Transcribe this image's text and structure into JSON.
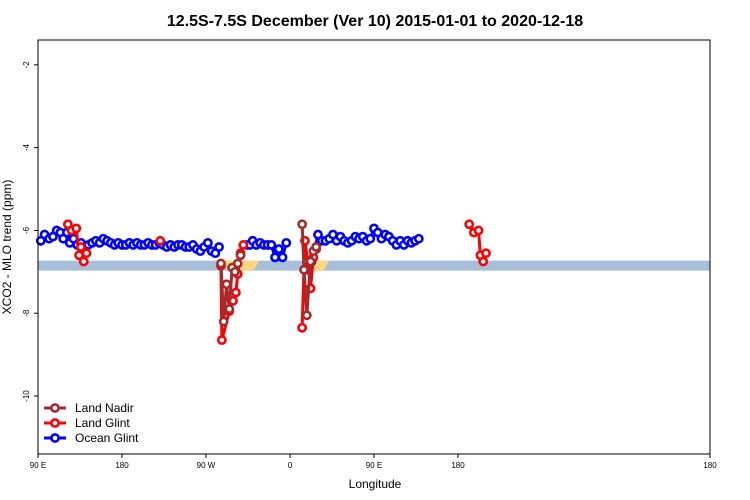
{
  "chart_data": {
    "type": "line",
    "title": "12.5S-7.5S December (Ver 10)   2015-01-01 to 2020-12-18",
    "xlabel": "Longitude",
    "ylabel": "XCO2 - MLO trend (ppm)",
    "xlim": [
      0,
      720
    ],
    "ylim": [
      -11.4,
      -1.4
    ],
    "x_ticks": [
      {
        "value": 0,
        "label": "90 E"
      },
      {
        "value": 90,
        "label": "180"
      },
      {
        "value": 180,
        "label": "90 W"
      },
      {
        "value": 270,
        "label": "0"
      },
      {
        "value": 360,
        "label": "90 E"
      },
      {
        "value": 450,
        "label": "180"
      }
    ],
    "y_ticks": [
      {
        "value": -2,
        "label": "-2"
      },
      {
        "value": -4,
        "label": "-4"
      },
      {
        "value": -6,
        "label": "-6"
      },
      {
        "value": -8,
        "label": "-8"
      },
      {
        "value": -10,
        "label": "-10"
      }
    ],
    "colors": {
      "land_nadir": "#a52a2a",
      "land_glint": "#ff0000",
      "ocean_glint": "#0000ff",
      "ocean_band": "#a8bfdc",
      "land_band": "#ffd77a",
      "frame": "#000000"
    },
    "surface_band": {
      "y": -6.85,
      "land_ranges": [
        [
          197,
          237
        ],
        [
          290,
          312
        ],
        [
          197.5,
          237.5
        ],
        [
          290.5,
          312.5
        ]
      ]
    },
    "series": [
      {
        "name": "Land Nadir",
        "key": "land_nadir",
        "points": [
          [
            196,
            -6.8
          ],
          [
            199,
            -8.2
          ],
          [
            202,
            -7.3
          ],
          [
            205,
            -7.9
          ],
          [
            208,
            -6.9
          ],
          [
            211,
            -7.0
          ],
          [
            214,
            -6.8
          ],
          [
            217,
            -6.6
          ],
          [
            283,
            -5.85
          ],
          [
            285,
            -6.95
          ],
          [
            288,
            -8.05
          ],
          [
            292,
            -6.75
          ],
          [
            295,
            -6.5
          ],
          [
            298,
            -6.4
          ]
        ]
      },
      {
        "name": "Land Glint",
        "key": "land_glint",
        "points": [
          [
            32,
            -5.85
          ],
          [
            36,
            -6.0
          ],
          [
            41,
            -5.95
          ],
          [
            44,
            -6.6
          ],
          [
            46,
            -6.4
          ],
          [
            49,
            -6.75
          ],
          [
            52,
            -6.55
          ],
          [
            131,
            -6.25
          ],
          [
            196,
            -6.85
          ],
          [
            197,
            -8.65
          ],
          [
            205,
            -7.95
          ],
          [
            209,
            -7.7
          ],
          [
            212,
            -7.5
          ],
          [
            214,
            -7.05
          ],
          [
            217,
            -6.55
          ],
          [
            220,
            -6.35
          ],
          [
            283,
            -8.35
          ],
          [
            286,
            -6.25
          ],
          [
            289,
            -6.75
          ],
          [
            292,
            -7.4
          ],
          [
            295,
            -6.65
          ],
          [
            298,
            -6.45
          ],
          [
            462,
            -5.85
          ],
          [
            467,
            -6.05
          ],
          [
            472,
            -6.0
          ],
          [
            474,
            -6.6
          ],
          [
            477,
            -6.75
          ],
          [
            480,
            -6.55
          ]
        ]
      },
      {
        "name": "Ocean Glint",
        "key": "ocean_glint",
        "points": [
          [
            3,
            -6.25
          ],
          [
            7,
            -6.1
          ],
          [
            12,
            -6.2
          ],
          [
            16,
            -6.15
          ],
          [
            20,
            -6.0
          ],
          [
            24,
            -6.05
          ],
          [
            27,
            -6.2
          ],
          [
            31,
            -6.05
          ],
          [
            34,
            -6.3
          ],
          [
            38,
            -6.2
          ],
          [
            42,
            -6.35
          ],
          [
            46,
            -6.3
          ],
          [
            50,
            -6.4
          ],
          [
            54,
            -6.35
          ],
          [
            58,
            -6.3
          ],
          [
            62,
            -6.25
          ],
          [
            66,
            -6.3
          ],
          [
            70,
            -6.2
          ],
          [
            74,
            -6.25
          ],
          [
            78,
            -6.3
          ],
          [
            82,
            -6.35
          ],
          [
            86,
            -6.3
          ],
          [
            90,
            -6.35
          ],
          [
            94,
            -6.35
          ],
          [
            98,
            -6.3
          ],
          [
            102,
            -6.35
          ],
          [
            106,
            -6.3
          ],
          [
            110,
            -6.35
          ],
          [
            114,
            -6.35
          ],
          [
            118,
            -6.3
          ],
          [
            122,
            -6.35
          ],
          [
            126,
            -6.35
          ],
          [
            130,
            -6.3
          ],
          [
            134,
            -6.35
          ],
          [
            138,
            -6.4
          ],
          [
            142,
            -6.35
          ],
          [
            146,
            -6.4
          ],
          [
            150,
            -6.35
          ],
          [
            154,
            -6.35
          ],
          [
            158,
            -6.4
          ],
          [
            162,
            -6.4
          ],
          [
            166,
            -6.35
          ],
          [
            170,
            -6.45
          ],
          [
            174,
            -6.5
          ],
          [
            178,
            -6.4
          ],
          [
            182,
            -6.3
          ],
          [
            186,
            -6.5
          ],
          [
            190,
            -6.55
          ],
          [
            194,
            -6.4
          ],
          [
            224,
            -6.35
          ],
          [
            227,
            -6.35
          ],
          [
            230,
            -6.25
          ],
          [
            234,
            -6.35
          ],
          [
            238,
            -6.3
          ],
          [
            242,
            -6.35
          ],
          [
            246,
            -6.35
          ],
          [
            250,
            -6.35
          ],
          [
            254,
            -6.65
          ],
          [
            258,
            -6.45
          ],
          [
            262,
            -6.65
          ],
          [
            266,
            -6.3
          ],
          [
            290,
            -6.95
          ],
          [
            293,
            -6.75
          ],
          [
            300,
            -6.1
          ],
          [
            304,
            -6.25
          ],
          [
            308,
            -6.25
          ],
          [
            312,
            -6.2
          ],
          [
            316,
            -6.1
          ],
          [
            320,
            -6.25
          ],
          [
            324,
            -6.15
          ],
          [
            328,
            -6.25
          ],
          [
            332,
            -6.3
          ],
          [
            336,
            -6.25
          ],
          [
            340,
            -6.15
          ],
          [
            344,
            -6.2
          ],
          [
            348,
            -6.15
          ],
          [
            352,
            -6.25
          ],
          [
            356,
            -6.2
          ],
          [
            360,
            -5.95
          ],
          [
            364,
            -6.05
          ],
          [
            368,
            -6.2
          ],
          [
            372,
            -6.1
          ],
          [
            376,
            -6.15
          ],
          [
            380,
            -6.25
          ],
          [
            384,
            -6.35
          ],
          [
            388,
            -6.25
          ],
          [
            392,
            -6.35
          ],
          [
            396,
            -6.25
          ],
          [
            400,
            -6.3
          ],
          [
            404,
            -6.25
          ],
          [
            408,
            -6.2
          ]
        ]
      }
    ],
    "legend": {
      "position": "bottom-left",
      "entries": [
        "Land Nadir",
        "Land Glint",
        "Ocean Glint"
      ]
    }
  }
}
